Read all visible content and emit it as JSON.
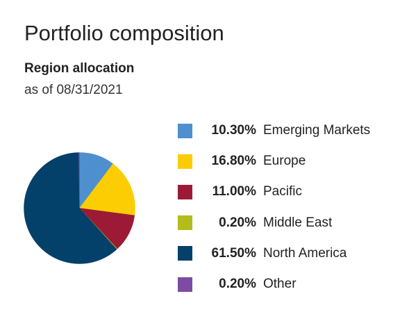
{
  "header": {
    "title": "Portfolio composition",
    "subtitle": "Region allocation",
    "as_of": "as of 08/31/2021"
  },
  "chart_data": {
    "type": "pie",
    "title": "Region allocation",
    "legend_placement": "right",
    "slices": [
      {
        "label": "Emerging Markets",
        "value": 10.3,
        "display": "10.30%",
        "color": "#4e8fcf"
      },
      {
        "label": "Europe",
        "value": 16.8,
        "display": "16.80%",
        "color": "#fccd02"
      },
      {
        "label": "Pacific",
        "value": 11.0,
        "display": "11.00%",
        "color": "#9c1a35"
      },
      {
        "label": "Middle East",
        "value": 0.2,
        "display": "0.20%",
        "color": "#b2bd1b"
      },
      {
        "label": "North America",
        "value": 61.5,
        "display": "61.50%",
        "color": "#03406a"
      },
      {
        "label": "Other",
        "value": 0.2,
        "display": "0.20%",
        "color": "#7d4ba3"
      }
    ]
  }
}
